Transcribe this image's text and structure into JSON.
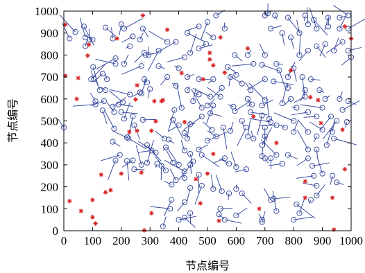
{
  "chart_data": {
    "type": "scatter",
    "title": "",
    "xlabel": "节点编号",
    "ylabel": "节点编号",
    "xlim": [
      0,
      1000
    ],
    "ylim": [
      0,
      1000
    ],
    "xticks": [
      "0",
      "100",
      "200",
      "300",
      "400",
      "500",
      "600",
      "700",
      "800",
      "900",
      "1000"
    ],
    "yticks": [
      "0",
      "100",
      "200",
      "300",
      "400",
      "500",
      "600",
      "700",
      "800",
      "900",
      "1000"
    ],
    "grid": false,
    "colors": {
      "node": "#3b4da0",
      "link": "#3b4da0",
      "anchor": "#d62728",
      "axis": "#000000"
    },
    "series": [
      {
        "marker": "asterisk",
        "points": [
          [
            5,
            938
          ],
          [
            87,
            847
          ],
          [
            83,
            797
          ],
          [
            5,
            705
          ],
          [
            50,
            695
          ],
          [
            45,
            600
          ],
          [
            20,
            135
          ],
          [
            100,
            140
          ],
          [
            145,
            175
          ],
          [
            163,
            185
          ],
          [
            130,
            255
          ],
          [
            110,
            33
          ],
          [
            100,
            62
          ],
          [
            60,
            90
          ],
          [
            185,
            875
          ],
          [
            275,
            980
          ],
          [
            360,
            915
          ],
          [
            255,
            662
          ],
          [
            250,
            598
          ],
          [
            340,
            590
          ],
          [
            315,
            590
          ],
          [
            305,
            455
          ],
          [
            255,
            455
          ],
          [
            228,
            450
          ],
          [
            200,
            260
          ],
          [
            270,
            265
          ],
          [
            305,
            80
          ],
          [
            345,
            595
          ],
          [
            320,
            498
          ],
          [
            420,
            495
          ],
          [
            410,
            718
          ],
          [
            485,
            690
          ],
          [
            475,
            125
          ],
          [
            500,
            260
          ],
          [
            460,
            235
          ],
          [
            520,
            350
          ],
          [
            540,
            45
          ],
          [
            545,
            880
          ],
          [
            508,
            810
          ],
          [
            508,
            780
          ],
          [
            520,
            753
          ],
          [
            560,
            720
          ],
          [
            640,
            830
          ],
          [
            680,
            100
          ],
          [
            660,
            520
          ],
          [
            740,
            400
          ],
          [
            790,
            730
          ],
          [
            840,
            225
          ],
          [
            840,
            150
          ],
          [
            858,
            608
          ],
          [
            885,
            595
          ],
          [
            895,
            490
          ],
          [
            935,
            150
          ],
          [
            970,
            460
          ],
          [
            978,
            280
          ],
          [
            978,
            930
          ],
          [
            1000,
            875
          ],
          [
            940,
            5
          ],
          [
            280,
            2
          ]
        ]
      },
      {
        "marker": "circle",
        "points": [
          [
            0,
            470
          ],
          [
            40,
            905
          ],
          [
            20,
            875
          ],
          [
            70,
            930
          ],
          [
            75,
            880
          ],
          [
            90,
            870
          ],
          [
            75,
            840
          ],
          [
            100,
            870
          ],
          [
            102,
            745
          ],
          [
            95,
            690
          ],
          [
            145,
            925
          ],
          [
            170,
            875
          ],
          [
            200,
            940
          ],
          [
            210,
            920
          ],
          [
            240,
            885
          ],
          [
            265,
            870
          ],
          [
            275,
            920
          ],
          [
            280,
            810
          ],
          [
            285,
            800
          ],
          [
            295,
            800
          ],
          [
            270,
            750
          ],
          [
            210,
            760
          ],
          [
            180,
            760
          ],
          [
            150,
            690
          ],
          [
            145,
            640
          ],
          [
            125,
            640
          ],
          [
            105,
            690
          ],
          [
            135,
            715
          ],
          [
            180,
            785
          ],
          [
            230,
            840
          ],
          [
            280,
            690
          ],
          [
            290,
            675
          ],
          [
            300,
            645
          ],
          [
            265,
            630
          ],
          [
            270,
            625
          ],
          [
            230,
            620
          ],
          [
            205,
            585
          ],
          [
            190,
            575
          ],
          [
            140,
            590
          ],
          [
            110,
            590
          ],
          [
            110,
            575
          ],
          [
            135,
            548
          ],
          [
            170,
            565
          ],
          [
            200,
            540
          ],
          [
            175,
            540
          ],
          [
            210,
            510
          ],
          [
            240,
            520
          ],
          [
            275,
            505
          ],
          [
            245,
            480
          ],
          [
            175,
            465
          ],
          [
            225,
            420
          ],
          [
            220,
            425
          ],
          [
            170,
            405
          ],
          [
            195,
            345
          ],
          [
            180,
            320
          ],
          [
            220,
            318
          ],
          [
            240,
            320
          ],
          [
            245,
            280
          ],
          [
            270,
            300
          ],
          [
            290,
            310
          ],
          [
            320,
            355
          ],
          [
            325,
            305
          ],
          [
            340,
            295
          ],
          [
            355,
            275
          ],
          [
            380,
            310
          ],
          [
            400,
            300
          ],
          [
            420,
            240
          ],
          [
            375,
            210
          ],
          [
            390,
            230
          ],
          [
            375,
            140
          ],
          [
            420,
            130
          ],
          [
            440,
            80
          ],
          [
            420,
            60
          ],
          [
            400,
            50
          ],
          [
            370,
            100
          ],
          [
            345,
            20
          ],
          [
            305,
            365
          ],
          [
            290,
            390
          ],
          [
            355,
            380
          ],
          [
            350,
            420
          ],
          [
            365,
            415
          ],
          [
            420,
            445
          ],
          [
            430,
            420
          ],
          [
            420,
            365
          ],
          [
            440,
            350
          ],
          [
            470,
            370
          ],
          [
            480,
            345
          ],
          [
            450,
            315
          ],
          [
            440,
            300
          ],
          [
            420,
            270
          ],
          [
            470,
            255
          ],
          [
            480,
            205
          ],
          [
            440,
            195
          ],
          [
            520,
            190
          ],
          [
            550,
            180
          ],
          [
            575,
            170
          ],
          [
            600,
            190
          ],
          [
            620,
            170
          ],
          [
            635,
            280
          ],
          [
            600,
            290
          ],
          [
            575,
            305
          ],
          [
            560,
            330
          ],
          [
            530,
            430
          ],
          [
            500,
            410
          ],
          [
            515,
            460
          ],
          [
            500,
            570
          ],
          [
            510,
            535
          ],
          [
            480,
            520
          ],
          [
            440,
            485
          ],
          [
            400,
            480
          ],
          [
            380,
            505
          ],
          [
            385,
            550
          ],
          [
            410,
            560
          ],
          [
            450,
            590
          ],
          [
            480,
            560
          ],
          [
            520,
            570
          ],
          [
            545,
            610
          ],
          [
            590,
            565
          ],
          [
            595,
            545
          ],
          [
            650,
            540
          ],
          [
            690,
            525
          ],
          [
            715,
            510
          ],
          [
            720,
            495
          ],
          [
            620,
            500
          ],
          [
            555,
            470
          ],
          [
            580,
            455
          ],
          [
            635,
            470
          ],
          [
            640,
            430
          ],
          [
            660,
            420
          ],
          [
            690,
            390
          ],
          [
            690,
            340
          ],
          [
            700,
            330
          ],
          [
            720,
            330
          ],
          [
            760,
            305
          ],
          [
            780,
            345
          ],
          [
            740,
            345
          ],
          [
            700,
            430
          ],
          [
            700,
            470
          ],
          [
            740,
            480
          ],
          [
            770,
            470
          ],
          [
            800,
            450
          ],
          [
            850,
            450
          ],
          [
            880,
            430
          ],
          [
            900,
            460
          ],
          [
            935,
            450
          ],
          [
            940,
            420
          ],
          [
            915,
            390
          ],
          [
            880,
            370
          ],
          [
            850,
            370
          ],
          [
            850,
            330
          ],
          [
            865,
            295
          ],
          [
            870,
            250
          ],
          [
            880,
            205
          ],
          [
            900,
            260
          ],
          [
            935,
            250
          ],
          [
            950,
            220
          ],
          [
            880,
            160
          ],
          [
            860,
            140
          ],
          [
            810,
            120
          ],
          [
            820,
            80
          ],
          [
            800,
            50
          ],
          [
            740,
            90
          ],
          [
            730,
            145
          ],
          [
            690,
            50
          ],
          [
            690,
            40
          ],
          [
            720,
            140
          ],
          [
            600,
            70
          ],
          [
            560,
            50
          ],
          [
            540,
            75
          ],
          [
            545,
            100
          ],
          [
            655,
            575
          ],
          [
            690,
            570
          ],
          [
            700,
            595
          ],
          [
            760,
            580
          ],
          [
            790,
            600
          ],
          [
            780,
            650
          ],
          [
            730,
            680
          ],
          [
            700,
            690
          ],
          [
            650,
            640
          ],
          [
            640,
            600
          ],
          [
            620,
            670
          ],
          [
            600,
            710
          ],
          [
            580,
            700
          ],
          [
            570,
            745
          ],
          [
            595,
            800
          ],
          [
            640,
            800
          ],
          [
            660,
            760
          ],
          [
            690,
            755
          ],
          [
            700,
            800
          ],
          [
            740,
            760
          ],
          [
            750,
            730
          ],
          [
            780,
            700
          ],
          [
            800,
            740
          ],
          [
            830,
            700
          ],
          [
            860,
            690
          ],
          [
            840,
            640
          ],
          [
            840,
            610
          ],
          [
            890,
            640
          ],
          [
            910,
            600
          ],
          [
            900,
            560
          ],
          [
            960,
            600
          ],
          [
            990,
            590
          ],
          [
            970,
            550
          ],
          [
            950,
            500
          ],
          [
            985,
            495
          ],
          [
            930,
            520
          ],
          [
            880,
            520
          ],
          [
            850,
            540
          ],
          [
            810,
            560
          ],
          [
            800,
            500
          ],
          [
            820,
            800
          ],
          [
            850,
            820
          ],
          [
            880,
            840
          ],
          [
            910,
            850
          ],
          [
            940,
            820
          ],
          [
            970,
            860
          ],
          [
            990,
            820
          ],
          [
            1000,
            790
          ],
          [
            960,
            920
          ],
          [
            990,
            920
          ],
          [
            960,
            970
          ],
          [
            990,
            980
          ],
          [
            920,
            970
          ],
          [
            870,
            960
          ],
          [
            840,
            980
          ],
          [
            780,
            970
          ],
          [
            735,
            980
          ],
          [
            710,
            990
          ],
          [
            700,
            980
          ],
          [
            720,
            920
          ],
          [
            760,
            900
          ],
          [
            790,
            880
          ],
          [
            820,
            900
          ],
          [
            850,
            940
          ],
          [
            880,
            920
          ],
          [
            920,
            930
          ],
          [
            560,
            920
          ],
          [
            520,
            880
          ],
          [
            495,
            850
          ],
          [
            470,
            830
          ],
          [
            440,
            810
          ],
          [
            420,
            790
          ],
          [
            400,
            740
          ],
          [
            430,
            700
          ],
          [
            470,
            690
          ],
          [
            520,
            690
          ],
          [
            550,
            650
          ],
          [
            510,
            610
          ],
          [
            470,
            620
          ],
          [
            430,
            640
          ],
          [
            390,
            660
          ],
          [
            360,
            700
          ],
          [
            330,
            750
          ],
          [
            330,
            820
          ],
          [
            360,
            860
          ],
          [
            390,
            860
          ],
          [
            430,
            900
          ],
          [
            470,
            930
          ],
          [
            500,
            950
          ],
          [
            530,
            980
          ]
        ]
      }
    ]
  }
}
